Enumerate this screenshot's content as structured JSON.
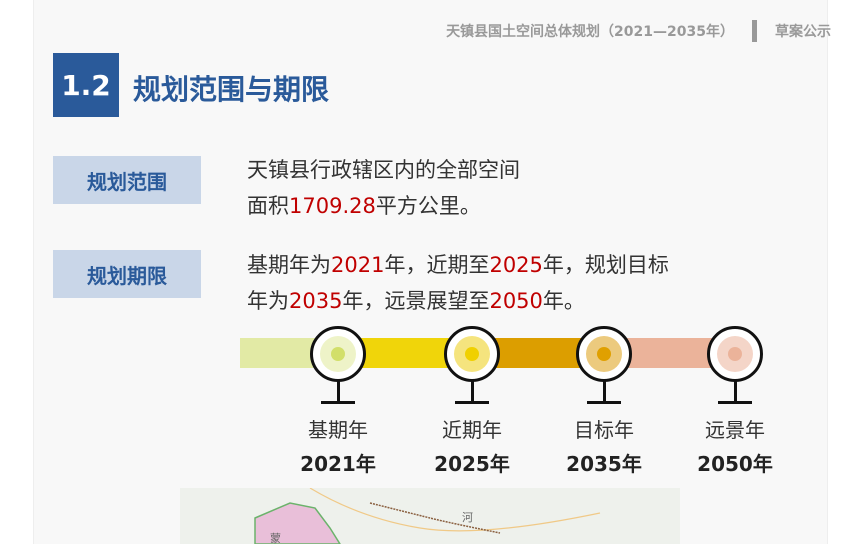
{
  "header": {
    "doc_title": "天镇县国土空间总体规划（2021—2035年）",
    "status": "草案公示"
  },
  "section": {
    "number": "1.2",
    "title": "规划范围与期限"
  },
  "scope": {
    "label": "规划范围",
    "line1": "天镇县行政辖区内的全部空间",
    "line2_pre": "面积",
    "area": "1709.28",
    "line2_post": "平方公里。"
  },
  "period": {
    "label": "规划期限",
    "p1": "基期年为",
    "y1": "2021",
    "p2": "年，近期至",
    "y2": "2025",
    "p3": "年，规划目标",
    "p4": "年为",
    "y3": "2035",
    "p5": "年，远景展望至",
    "y4": "2050",
    "p6": "年。"
  },
  "timeline": [
    {
      "label": "基期年",
      "year": "2021年",
      "color": "#e2eaa5",
      "inner": "#eef3c8",
      "dot": "#d2df6a"
    },
    {
      "label": "近期年",
      "year": "2025年",
      "color": "#f0d50a",
      "inner": "#f5e47e",
      "dot": "#f0d000"
    },
    {
      "label": "目标年",
      "year": "2035年",
      "color": "#dc9e00",
      "inner": "#ecca7e",
      "dot": "#e0a000"
    },
    {
      "label": "远景年",
      "year": "2050年",
      "color": "#ebb39a",
      "inner": "#f4d5c8",
      "dot": "#ebb39a"
    }
  ],
  "map": {
    "labels": [
      "河",
      "蒙"
    ]
  }
}
